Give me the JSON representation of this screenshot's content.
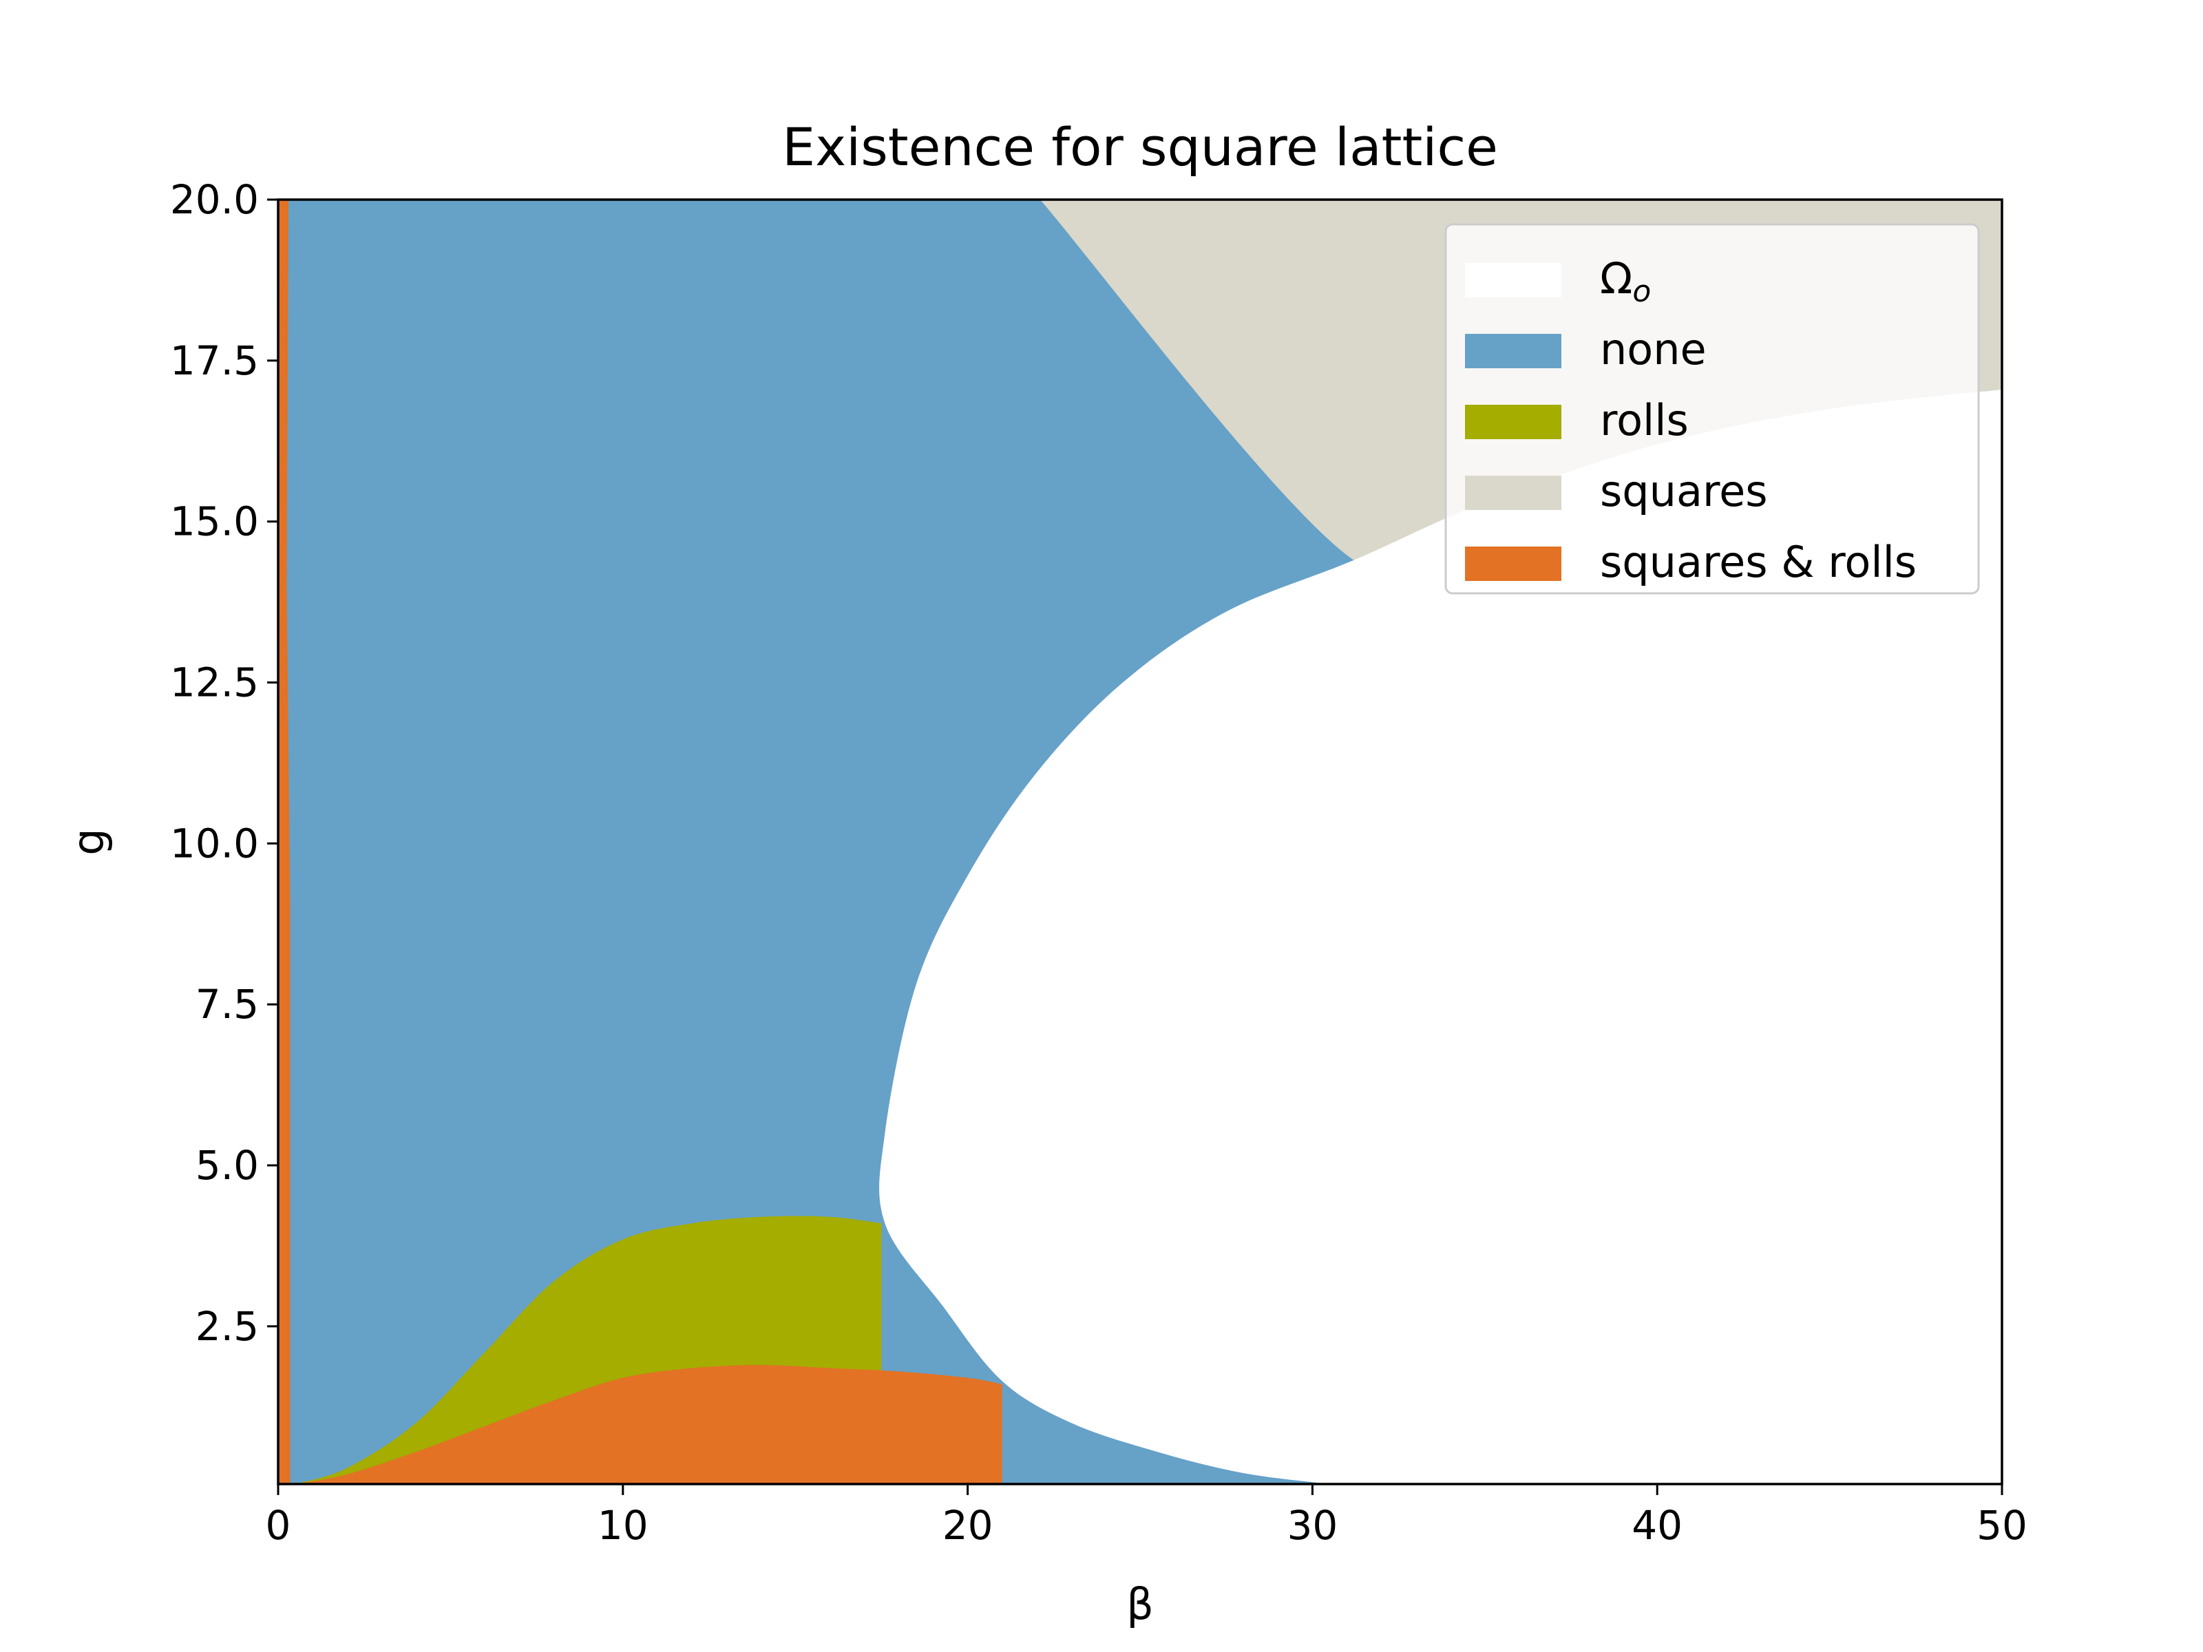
{
  "chart_data": {
    "type": "area",
    "title": "Existence for square lattice",
    "xlabel": "β",
    "ylabel": "g",
    "xlim": [
      0,
      50
    ],
    "ylim": [
      0.05,
      20.0
    ],
    "xticks": [
      "0",
      "10",
      "20",
      "30",
      "40",
      "50"
    ],
    "xtick_values": [
      0,
      10,
      20,
      30,
      40,
      50
    ],
    "yticks": [
      "2.5",
      "5.0",
      "7.5",
      "10.0",
      "12.5",
      "15.0",
      "17.5",
      "20.0"
    ],
    "ytick_values": [
      2.5,
      5.0,
      7.5,
      10.0,
      12.5,
      15.0,
      17.5,
      20.0
    ],
    "grid": false,
    "legend_position": "top-right",
    "regions": [
      {
        "name": "Ω",
        "name_subscript": "o",
        "color": "#ffffff",
        "boundary_curve": {
          "beta": [
            30.5,
            28,
            25.5,
            23,
            21,
            19.3,
            17.6,
            17.6,
            18.5,
            20,
            22,
            24.5,
            27.5,
            31.2,
            35,
            40,
            45,
            50
          ],
          "g": [
            0.05,
            0.22,
            0.55,
            1.0,
            1.65,
            2.8,
            4.1,
            5.5,
            7.8,
            9.5,
            11.1,
            12.5,
            13.6,
            14.4,
            15.3,
            16.2,
            16.75,
            17.05
          ]
        }
      },
      {
        "name": "none",
        "color": "#66a1c8",
        "upper_boundary_to_squares": {
          "beta": [
            22.1,
            24,
            26,
            28,
            30,
            31.2
          ],
          "g": [
            20.0,
            18.6,
            17.3,
            16.2,
            15.1,
            14.4
          ]
        }
      },
      {
        "name": "rolls",
        "color": "#a4ad00",
        "upper_boundary": {
          "beta": [
            0.5,
            2,
            4,
            6,
            8,
            10,
            12,
            14,
            16,
            17.5
          ],
          "g": [
            0.05,
            0.3,
            1.0,
            2.1,
            3.2,
            3.85,
            4.1,
            4.2,
            4.2,
            4.1
          ]
        }
      },
      {
        "name": "squares",
        "color": "#dad8cb",
        "boundary": {
          "beta": [
            22.1,
            31.2,
            35,
            40,
            45,
            50
          ],
          "g": [
            20.0,
            14.4,
            15.3,
            16.2,
            16.75,
            17.05
          ]
        }
      },
      {
        "name": "squares & rolls",
        "color": "#e37224",
        "upper_boundary": {
          "beta": [
            0.5,
            2,
            4,
            6,
            8,
            10,
            12,
            14,
            16,
            18,
            20,
            21
          ],
          "g": [
            0.05,
            0.2,
            0.55,
            0.95,
            1.35,
            1.7,
            1.85,
            1.9,
            1.85,
            1.8,
            1.7,
            1.6
          ]
        },
        "left_strip": {
          "beta": [
            0,
            0.35,
            0.35,
            0.25,
            0.3,
            0
          ],
          "g": [
            0.05,
            0.05,
            9.0,
            14.0,
            20.0,
            20.0
          ]
        }
      }
    ],
    "legend_entries": [
      "Ω",
      "none",
      "rolls",
      "squares",
      "squares & rolls"
    ]
  }
}
